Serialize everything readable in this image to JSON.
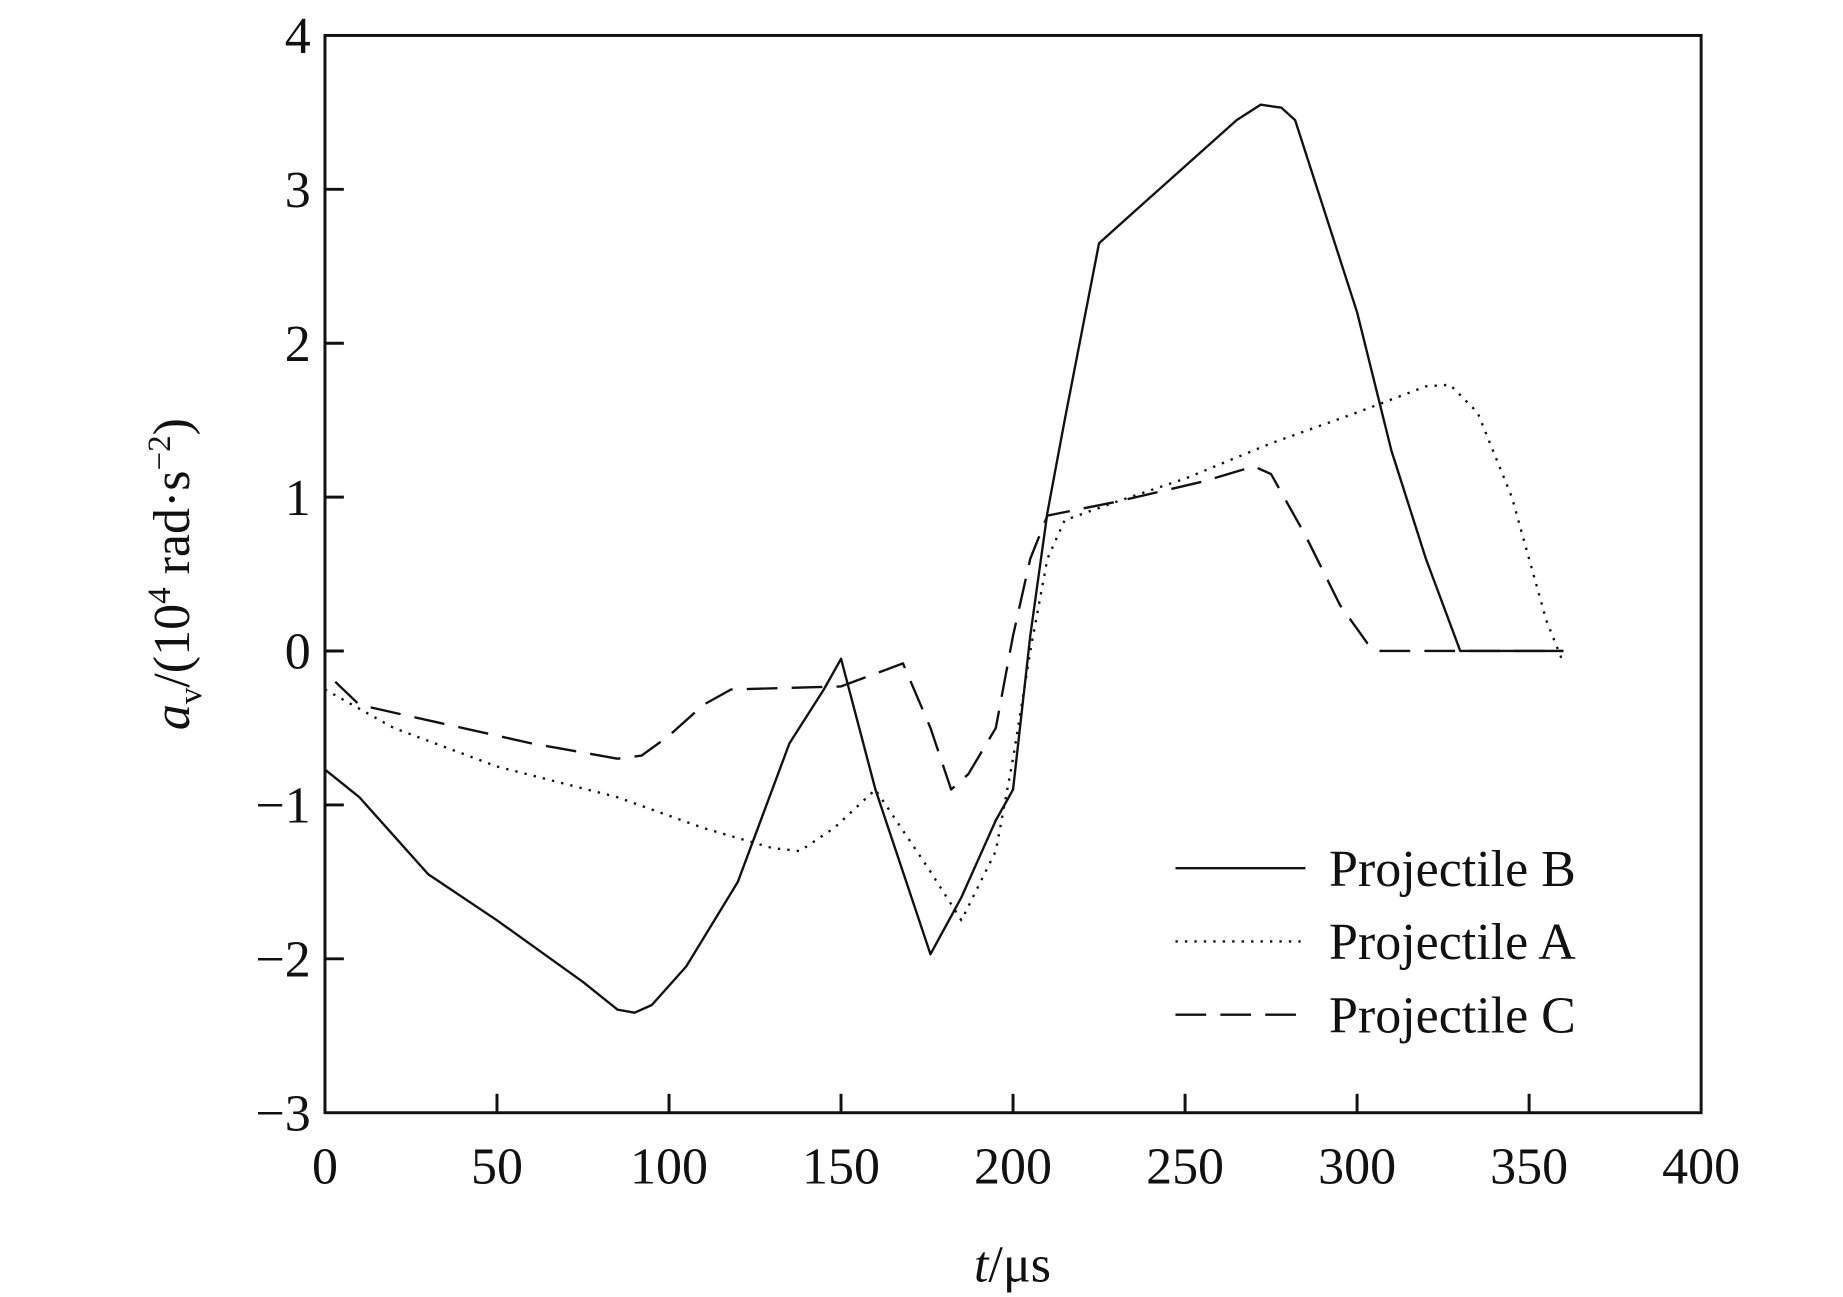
{
  "chart_data": {
    "type": "line",
    "title": "",
    "xlabel": "t/μs",
    "xlabel_italic": "t",
    "xlabel_unit": "/μs",
    "ylabel": "a_v/(10^4 rad·s^-2)",
    "ylabel_parts": {
      "var": "a",
      "sub": "v",
      "pre": "/(10",
      "sup": "4",
      "mid": " rad·s",
      "sup2": "−2",
      "post": ")"
    },
    "xlim": [
      0,
      400
    ],
    "ylim": [
      -3,
      4
    ],
    "xticks": [
      0,
      50,
      100,
      150,
      200,
      250,
      300,
      350,
      400
    ],
    "yticks": [
      -3,
      -2,
      -1,
      0,
      1,
      2,
      3,
      4
    ],
    "xtick_labels": [
      "0",
      "50",
      "100",
      "150",
      "200",
      "250",
      "300",
      "350",
      "400"
    ],
    "ytick_labels": [
      "−3",
      "−2",
      "−1",
      "0",
      "1",
      "2",
      "3",
      "4"
    ],
    "grid": false,
    "legend_position": "bottom-right",
    "series": [
      {
        "name": "Projectile B",
        "style": "solid",
        "x": [
          0,
          10,
          30,
          50,
          75,
          85,
          90,
          95,
          105,
          120,
          135,
          145,
          150,
          160,
          176,
          185,
          195,
          200,
          205,
          210,
          215,
          225,
          235,
          250,
          265,
          272,
          278,
          282,
          300,
          310,
          320,
          330,
          360
        ],
        "y": [
          -0.77,
          -0.95,
          -1.45,
          -1.75,
          -2.15,
          -2.33,
          -2.35,
          -2.3,
          -2.05,
          -1.5,
          -0.6,
          -0.25,
          -0.05,
          -0.9,
          -1.97,
          -1.6,
          -1.1,
          -0.9,
          0.1,
          0.9,
          1.5,
          2.65,
          2.85,
          3.15,
          3.45,
          3.55,
          3.53,
          3.45,
          2.2,
          1.3,
          0.6,
          0.0,
          0.0
        ]
      },
      {
        "name": "Projectile A",
        "style": "dotted",
        "x": [
          0,
          20,
          50,
          85,
          110,
          130,
          138,
          148,
          160,
          175,
          185,
          195,
          200,
          205,
          210,
          215,
          230,
          250,
          275,
          300,
          320,
          327,
          335,
          345,
          355,
          360
        ],
        "y": [
          -0.25,
          -0.5,
          -0.75,
          -0.95,
          -1.15,
          -1.28,
          -1.3,
          -1.15,
          -0.9,
          -1.4,
          -1.75,
          -1.3,
          -0.7,
          0.0,
          0.6,
          0.85,
          0.97,
          1.12,
          1.35,
          1.55,
          1.72,
          1.73,
          1.55,
          1.0,
          0.2,
          -0.08
        ]
      },
      {
        "name": "Projectile C",
        "style": "dashed",
        "x": [
          3,
          10,
          30,
          60,
          85,
          92,
          100,
          110,
          118,
          150,
          168,
          176,
          182,
          187,
          195,
          200,
          205,
          210,
          230,
          255,
          270,
          275,
          285,
          295,
          303,
          306,
          360
        ],
        "y": [
          -0.2,
          -0.35,
          -0.45,
          -0.6,
          -0.7,
          -0.68,
          -0.55,
          -0.35,
          -0.25,
          -0.23,
          -0.08,
          -0.5,
          -0.9,
          -0.8,
          -0.5,
          0.1,
          0.6,
          0.88,
          0.97,
          1.1,
          1.2,
          1.15,
          0.75,
          0.3,
          0.05,
          0.0,
          0.0
        ]
      }
    ]
  }
}
